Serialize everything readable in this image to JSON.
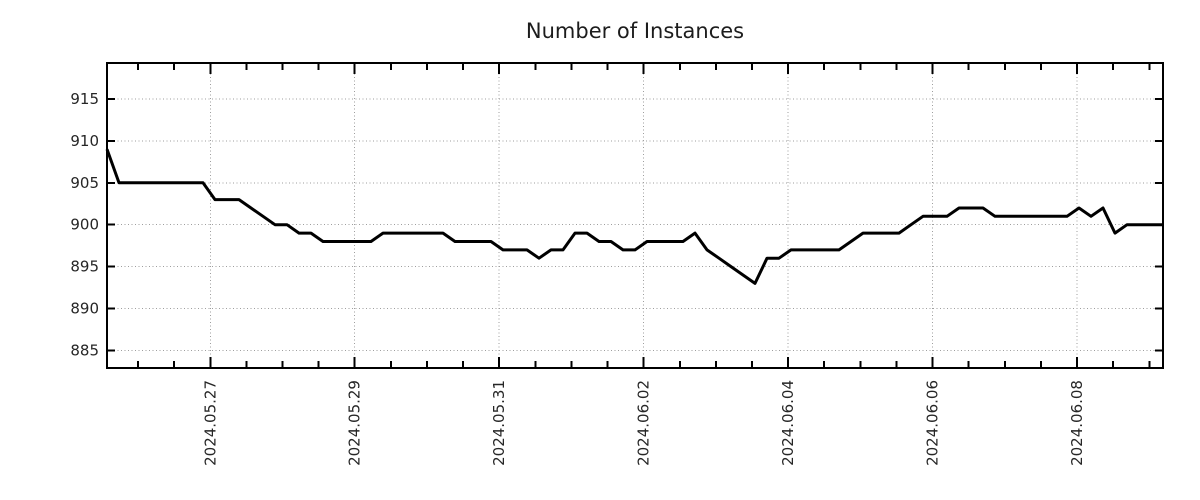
{
  "page": {
    "title": "Number of Instances"
  },
  "chart_data": {
    "type": "line",
    "title": "Number of Instances",
    "legend": {
      "show": false
    },
    "grid": {
      "show": true,
      "style": "dotted",
      "color": "#9e9e9e"
    },
    "x_axis": {
      "tick_labels": [
        "2024.05.27",
        "2024.05.29",
        "2024.05.31",
        "2024.06.02",
        "2024.06.04",
        "2024.06.06",
        "2024.06.08"
      ],
      "labeled_tick_days": [
        0,
        2,
        4,
        6,
        8,
        10,
        12
      ],
      "minor_tick_interval_days": 0.5,
      "range_days": [
        -1.43,
        13.19
      ],
      "label_rotation_deg": -90
    },
    "y_axis": {
      "tick_labels": [
        "885",
        "890",
        "895",
        "900",
        "905",
        "910",
        "915"
      ],
      "tick_values": [
        885,
        890,
        895,
        900,
        905,
        910,
        915
      ],
      "range": [
        882.9,
        919.3
      ]
    },
    "series": [
      {
        "name": "Number of Instances",
        "color": "#000000",
        "line_width": 3,
        "sampling": {
          "start_day": -1.43,
          "interval_days": 0.16614,
          "interval_hours": 4
        },
        "values": [
          909,
          905,
          905,
          905,
          905,
          905,
          905,
          905,
          905,
          903,
          903,
          903,
          902,
          901,
          900,
          900,
          899,
          899,
          898,
          898,
          898,
          898,
          898,
          899,
          899,
          899,
          899,
          899,
          899,
          898,
          898,
          898,
          898,
          897,
          897,
          897,
          896,
          897,
          897,
          899,
          899,
          898,
          898,
          897,
          897,
          898,
          898,
          898,
          898,
          899,
          897,
          896,
          895,
          894,
          893,
          896,
          896,
          897,
          897,
          897,
          897,
          897,
          898,
          899,
          899,
          899,
          899,
          900,
          901,
          901,
          901,
          902,
          902,
          902,
          901,
          901,
          901,
          901,
          901,
          901,
          901,
          902,
          901,
          902,
          899,
          900,
          900,
          900,
          900
        ]
      }
    ],
    "axis_color": "#000000"
  }
}
